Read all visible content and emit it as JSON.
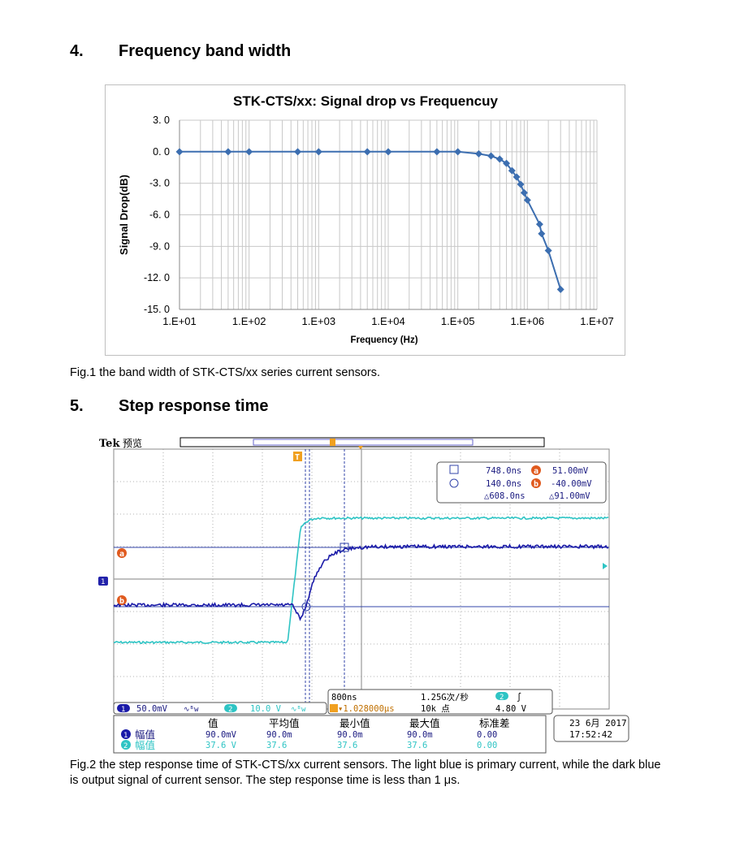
{
  "section4": {
    "number": "4.",
    "title": "Frequency band width"
  },
  "fig1_caption": "Fig.1 the band width of STK-CTS/xx series current sensors.",
  "section5": {
    "number": "5.",
    "title": "Step response time"
  },
  "fig2_caption": "Fig.2 the step response time of STK-CTS/xx current sensors. The light blue is primary current, while the dark blue is output signal of current sensor. The step response time is less than 1 μs.",
  "chart_data": {
    "type": "line",
    "title": "STK-CTS/xx: Signal drop vs Frequencuy",
    "xlabel": "Frequency  (Hz)",
    "ylabel": "Signal Drop(dB)",
    "x_scale": "log",
    "xlim": [
      10,
      10000000
    ],
    "ylim": [
      -15,
      3
    ],
    "x_ticks": [
      "1.E+01",
      "1.E+02",
      "1.E+03",
      "1.E+04",
      "1.E+05",
      "1.E+06",
      "1.E+07"
    ],
    "y_ticks": [
      "3. 0",
      "0. 0",
      "-3. 0",
      "-6. 0",
      "-9. 0",
      "-12. 0",
      "-15. 0"
    ],
    "y_tick_values": [
      3,
      0,
      -3,
      -6,
      -9,
      -12,
      -15
    ],
    "grid": true,
    "series_color": "#3c6eb0",
    "series": [
      {
        "x": [
          10,
          50,
          100,
          500,
          1000,
          5000,
          10000,
          50000,
          100000,
          200000,
          300000,
          400000,
          500000,
          600000,
          700000,
          800000,
          900000,
          1000000,
          1500000,
          1600000,
          2000000,
          3000000
        ],
        "y": [
          0,
          0,
          0,
          0,
          0,
          0,
          0,
          0,
          0,
          -0.2,
          -0.4,
          -0.7,
          -1.1,
          -1.8,
          -2.4,
          -3.1,
          -3.9,
          -4.6,
          -6.9,
          -7.8,
          -9.4,
          -13.1
        ]
      }
    ]
  },
  "scope": {
    "brand": "Tek",
    "mode": "预览",
    "trigger_marker": "T",
    "cursor_panel": {
      "row1_time": "748.0ns",
      "row1_volt": "51.00mV",
      "row2_time": "140.0ns",
      "row2_volt": "-40.00mV",
      "delta_time": "△608.0ns",
      "delta_volt": "△91.00mV",
      "badge_a": "a",
      "badge_b": "b"
    },
    "ch1_label": "1",
    "ref_a": "a",
    "ref_b": "b",
    "status": {
      "ch1_num": "1",
      "ch1_scale": "50.0mV",
      "ch1_coupling": "∿ᴮw",
      "ch2_num": "2",
      "ch2_scale": "10.0 V",
      "ch2_coupling": "∿ᴮw",
      "timebase": "800ns",
      "sample_rate": "1.25G次/秒",
      "trig_pos": "▾1.028000μs",
      "record": "10k 点",
      "trig_ch": "2",
      "trig_slope": "∫",
      "trig_level": "4.80 V"
    },
    "measure": {
      "headers": [
        "值",
        "平均值",
        "最小值",
        "最大值",
        "标准差"
      ],
      "rows": [
        {
          "ch": "1",
          "name": "幅值",
          "values": [
            "90.0mV",
            "90.0m",
            "90.0m",
            "90.0m",
            "0.00"
          ]
        },
        {
          "ch": "2",
          "name": "幅值",
          "values": [
            "37.6 V",
            "37.6",
            "37.6",
            "37.6",
            "0.00"
          ]
        }
      ]
    },
    "date": "23 6月 2017",
    "time": "17:52:42",
    "colors": {
      "ch1": "#1a1aa8",
      "ch2": "#2ec4c4",
      "ref": "#e05a1e",
      "grid": "#9a9a9a",
      "cursor": "#3344aa"
    }
  }
}
